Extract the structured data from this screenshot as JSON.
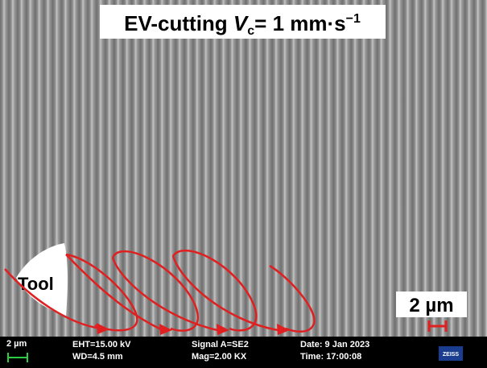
{
  "title": {
    "prefix": "EV-cutting ",
    "symbol": "V",
    "subscript": "c",
    "rest": "= 1 mm·s",
    "superscript": "−1"
  },
  "tool_label": "Tool",
  "scale_label": "2 µm",
  "info_bar": {
    "scale": "2 µm",
    "eht": "EHT=15.00 kV",
    "wd": "WD=4.5 mm",
    "signal": "Signal A=SE2",
    "mag": "Mag=2.00 KX",
    "date": "Date: 9 Jan 2023",
    "time": "Time: 17:00:08",
    "logo": "ZEISS"
  }
}
